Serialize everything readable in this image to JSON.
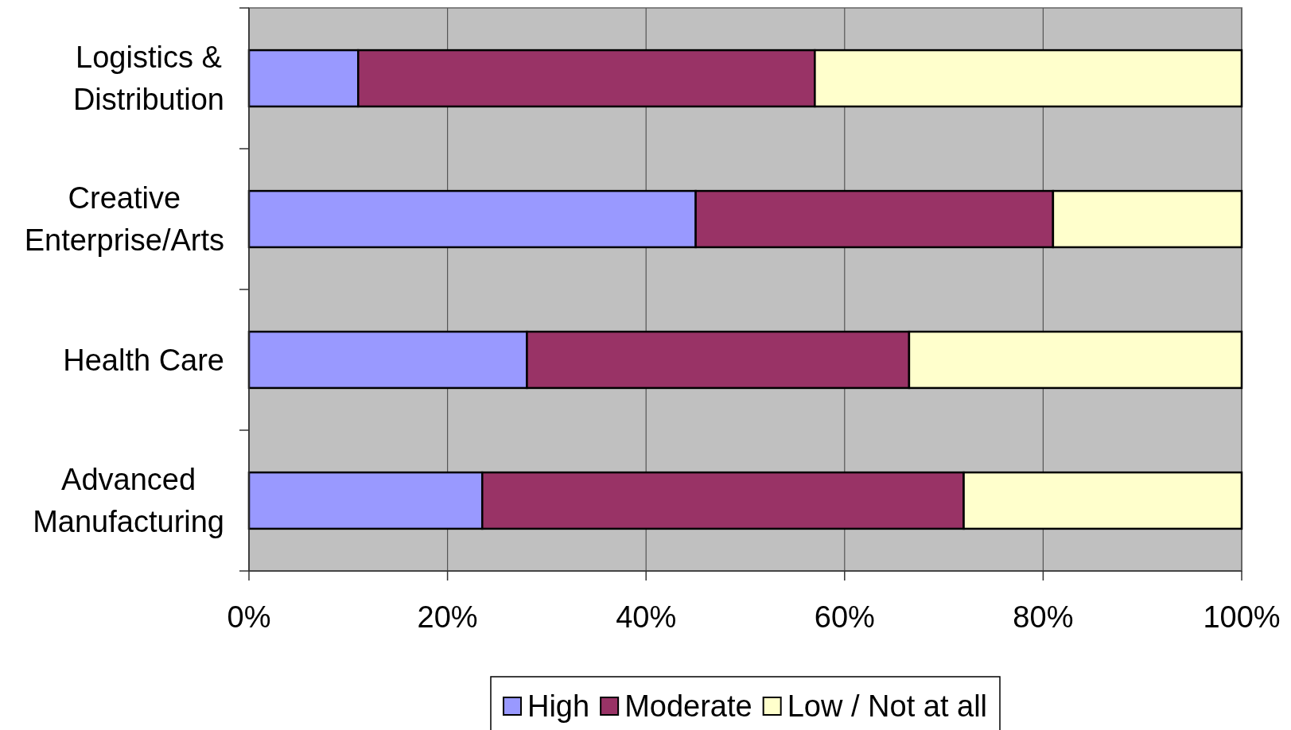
{
  "chart_data": {
    "type": "bar",
    "orientation": "horizontal",
    "stacked": true,
    "categories": [
      "Logistics & Distribution",
      "Creative Enterprise/Arts",
      "Health Care",
      "Advanced Manufacturing"
    ],
    "series": [
      {
        "name": "High",
        "color": "#9999ff",
        "values": [
          11,
          45,
          28,
          23.5
        ]
      },
      {
        "name": "Moderate",
        "color": "#993366",
        "values": [
          46,
          36,
          38.5,
          48.5
        ]
      },
      {
        "name": "Low / Not at all",
        "color": "#ffffcc",
        "values": [
          43,
          19,
          33.5,
          28
        ]
      }
    ],
    "xlim": [
      0,
      100
    ],
    "xticks": [
      {
        "value": 0,
        "label": "0%"
      },
      {
        "value": 20,
        "label": "20%"
      },
      {
        "value": 40,
        "label": "40%"
      },
      {
        "value": 60,
        "label": "60%"
      },
      {
        "value": 80,
        "label": "80%"
      },
      {
        "value": 100,
        "label": "100%"
      }
    ],
    "grid": "x",
    "legend": "bottom"
  }
}
